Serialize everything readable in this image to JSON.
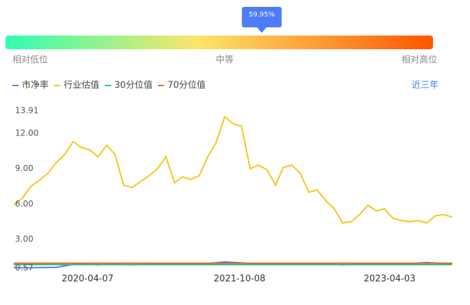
{
  "gauge": {
    "value": 59.95,
    "value_label": "59.95%",
    "labels": [
      "相对低位",
      "中等",
      "相对高位"
    ]
  },
  "range_button": "近三年",
  "chart_data": {
    "type": "line",
    "x": [
      "2019-07-15",
      "2019-08-15",
      "2019-09-15",
      "2019-10-15",
      "2019-11-15",
      "2019-12-15",
      "2020-01-15",
      "2020-02-15",
      "2020-03-15",
      "2020-04-15",
      "2020-05-15",
      "2020-06-15",
      "2020-07-15",
      "2020-08-15",
      "2020-09-15",
      "2020-10-15",
      "2020-11-15",
      "2020-12-15",
      "2021-01-15",
      "2021-02-15",
      "2021-03-15",
      "2021-04-15",
      "2021-05-15",
      "2021-06-15",
      "2021-07-15",
      "2021-08-15",
      "2021-09-15",
      "2021-10-15",
      "2021-11-15",
      "2021-12-15",
      "2022-01-15",
      "2022-02-15",
      "2022-03-15",
      "2022-04-15",
      "2022-05-15",
      "2022-06-15",
      "2022-07-15",
      "2022-08-15",
      "2022-09-15",
      "2022-10-15",
      "2022-11-15",
      "2022-12-15",
      "2023-01-15",
      "2023-02-15",
      "2023-03-15",
      "2023-04-15",
      "2023-05-15",
      "2023-06-15",
      "2023-07-15",
      "2023-08-15",
      "2023-09-15",
      "2023-10-15",
      "2023-11-15"
    ],
    "series": [
      {
        "name": "市净率",
        "color": "#4e7cf6",
        "values": [
          0.62,
          0.6,
          0.6,
          0.61,
          0.62,
          0.63,
          0.75,
          0.88,
          0.9,
          0.87,
          0.85,
          0.88,
          0.9,
          0.86,
          0.85,
          0.87,
          0.88,
          0.9,
          0.93,
          0.88,
          0.9,
          0.89,
          0.9,
          0.95,
          1.02,
          1.1,
          1.05,
          1.02,
          0.92,
          0.95,
          0.93,
          0.9,
          0.96,
          0.98,
          0.95,
          0.9,
          0.92,
          0.9,
          0.88,
          0.85,
          0.86,
          0.9,
          0.95,
          0.92,
          0.94,
          0.9,
          0.92,
          0.95,
          1.0,
          1.05,
          1.0,
          0.98,
          0.96
        ]
      },
      {
        "name": "行业估值",
        "color": "#f5c518",
        "values": [
          5.9,
          6.5,
          7.5,
          8.0,
          8.6,
          9.5,
          10.2,
          11.3,
          10.8,
          10.6,
          10.0,
          11.0,
          10.2,
          7.6,
          7.4,
          7.9,
          8.4,
          9.0,
          10.0,
          7.8,
          8.3,
          8.1,
          8.4,
          10.0,
          11.2,
          13.4,
          12.8,
          12.6,
          9.0,
          9.3,
          8.9,
          7.6,
          9.1,
          9.3,
          8.6,
          7.0,
          7.2,
          6.3,
          5.6,
          4.4,
          4.5,
          5.1,
          5.9,
          5.4,
          5.6,
          4.8,
          4.6,
          4.5,
          4.6,
          4.4,
          5.0,
          5.1,
          4.9
        ]
      },
      {
        "name": "30分位值",
        "color": "#1fc98a",
        "values": [
          0.86,
          0.86,
          0.86,
          0.86,
          0.86,
          0.86,
          0.86,
          0.86,
          0.86,
          0.86,
          0.86,
          0.86,
          0.86,
          0.86,
          0.86,
          0.86,
          0.86,
          0.86,
          0.86,
          0.86,
          0.86,
          0.86,
          0.86,
          0.86,
          0.86,
          0.86,
          0.86,
          0.86,
          0.86,
          0.86,
          0.86,
          0.86,
          0.86,
          0.86,
          0.86,
          0.86,
          0.86,
          0.86,
          0.86,
          0.86,
          0.86,
          0.86,
          0.86,
          0.86,
          0.86,
          0.86,
          0.86,
          0.86,
          0.86,
          0.86,
          0.86,
          0.86,
          0.86
        ]
      },
      {
        "name": "70分位值",
        "color": "#f2601c",
        "values": [
          0.98,
          0.98,
          0.98,
          0.98,
          0.98,
          0.98,
          0.98,
          0.98,
          0.98,
          0.98,
          0.98,
          0.98,
          0.98,
          0.98,
          0.98,
          0.98,
          0.98,
          0.98,
          0.98,
          0.98,
          0.98,
          0.98,
          0.98,
          0.98,
          0.98,
          0.98,
          0.98,
          0.98,
          0.98,
          0.98,
          0.98,
          0.98,
          0.98,
          0.98,
          0.98,
          0.98,
          0.98,
          0.98,
          0.98,
          0.98,
          0.98,
          0.98,
          0.98,
          0.98,
          0.98,
          0.98,
          0.98,
          0.98,
          0.98,
          0.98,
          0.98,
          0.98,
          0.98
        ]
      }
    ],
    "ylim": [
      0.57,
      13.91
    ],
    "yticks": [
      0.57,
      {
        "value": 3,
        "label": "3.00"
      },
      {
        "value": 6,
        "label": "6.00"
      },
      {
        "value": 9,
        "label": "9.00"
      },
      {
        "value": 12,
        "label": "12.00"
      },
      13.91
    ],
    "xlim": [
      "2019-07-15",
      "2023-11-15"
    ],
    "xticks": [
      "2020-04-07",
      "2021-10-08",
      "2023-04-03"
    ]
  }
}
